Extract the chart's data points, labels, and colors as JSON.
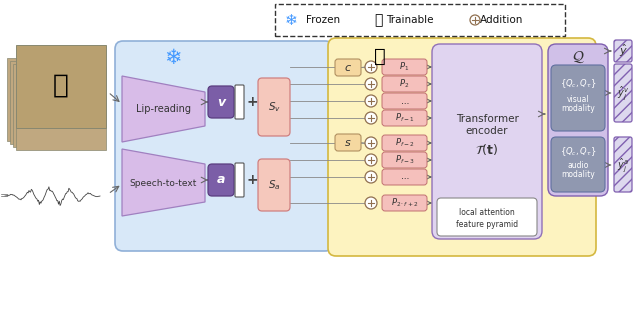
{
  "bg": "#ffffff",
  "light_blue": "#d8e8f8",
  "light_yellow": "#fdf3c0",
  "light_purple": "#e0d4f0",
  "pink": "#f5c0bc",
  "purple": "#7b5ea7",
  "steel_blue": "#8090a8",
  "output_bg": "#ddd8ee",
  "legend_items": [
    "Frozen",
    "Trainable",
    "Addition"
  ],
  "c_box": "#f5d8a0",
  "s_box": "#f5d8a0",
  "sv_box": "#f5c8bc",
  "sa_box": "#f5c8bc",
  "p_box": "#f5c0bc",
  "transformer_bg": "#e0d4f0",
  "q_bg": "#d0c0e8",
  "q_sub": "#9098b0"
}
